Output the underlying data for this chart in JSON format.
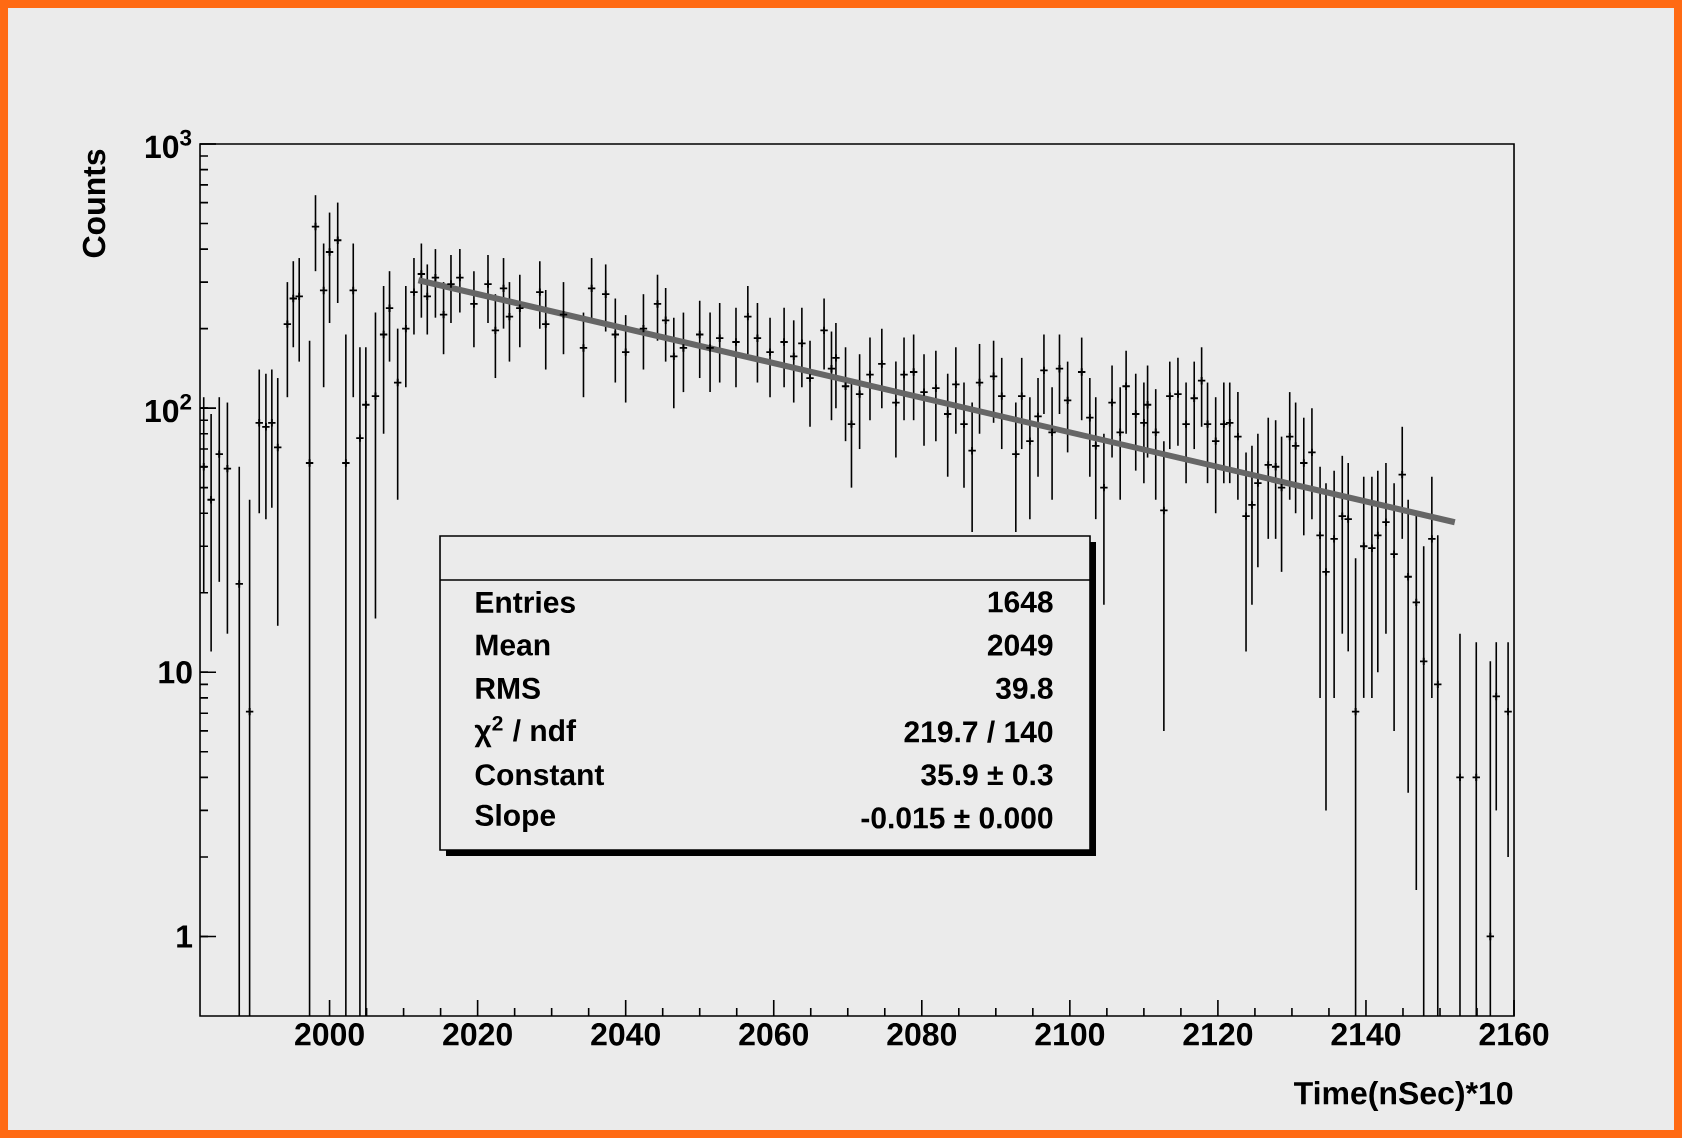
{
  "chart_data": {
    "type": "scatter",
    "xlabel": "Time(nSec)*10",
    "ylabel": "Counts",
    "log": "y",
    "xlim": [
      1982.5,
      2160
    ],
    "xticks": [
      2000,
      2020,
      2040,
      2060,
      2080,
      2100,
      2120,
      2140,
      2160
    ],
    "ylim": [
      0.5,
      1000
    ],
    "yticks": [
      1,
      10,
      {
        "value": 100,
        "label": "10$^{2}$"
      },
      {
        "value": 1000,
        "label": "10$^{3}$"
      }
    ],
    "annotations": [
      "Entries",
      "1648",
      "Mean",
      "2049",
      "RMS",
      "39.8",
      "χ$^{2}$ / ndf",
      "219.7 / 140",
      "Constant",
      "35.9 ± 0.3",
      "Slope",
      "-0.015 ± 0.000"
    ],
    "series": [
      {
        "color": "#000000",
        "marker": "cross",
        "x": [
          1983.0,
          1984.0,
          1985.1,
          1986.2,
          1987.8,
          1989.2,
          1990.5,
          1991.4,
          1992.2,
          1993.0,
          1994.3,
          1995.1,
          1995.9,
          1997.3,
          1998.1,
          1999.2,
          2000.0,
          2001.1,
          2002.2,
          2003.2,
          2004.1,
          2004.9,
          2006.2,
          2007.3,
          2008.1,
          2009.2,
          2010.3,
          2011.4,
          2012.4,
          2013.2,
          2014.3,
          2015.4,
          2016.4,
          2017.6,
          2019.5,
          2021.4,
          2022.4,
          2023.5,
          2024.3,
          2025.7,
          2028.4,
          2029.2,
          2031.6,
          2034.3,
          2035.4,
          2037.3,
          2038.6,
          2040.0,
          2042.4,
          2044.3,
          2045.4,
          2046.5,
          2047.8,
          2050.0,
          2051.4,
          2052.7,
          2054.9,
          2056.5,
          2057.8,
          2059.5,
          2061.4,
          2062.7,
          2063.8,
          2064.9,
          2066.8,
          2067.8,
          2068.4,
          2069.7,
          2070.5,
          2071.6,
          2073.0,
          2074.6,
          2076.5,
          2077.6,
          2078.9,
          2080.3,
          2081.9,
          2083.5,
          2084.6,
          2085.7,
          2086.8,
          2087.8,
          2089.7,
          2090.8,
          2092.7,
          2093.5,
          2094.6,
          2095.7,
          2096.5,
          2097.6,
          2098.6,
          2099.7,
          2101.6,
          2102.7,
          2103.5,
          2104.6,
          2105.7,
          2106.8,
          2107.6,
          2108.9,
          2110.0,
          2110.5,
          2111.6,
          2112.7,
          2113.5,
          2114.6,
          2115.7,
          2116.8,
          2117.8,
          2118.6,
          2119.7,
          2120.8,
          2121.6,
          2122.7,
          2123.8,
          2124.6,
          2125.4,
          2126.8,
          2127.8,
          2128.6,
          2129.7,
          2130.5,
          2131.6,
          2132.7,
          2133.8,
          2134.6,
          2135.7,
          2136.8,
          2137.6,
          2138.6,
          2139.7,
          2140.8,
          2141.6,
          2142.7,
          2143.8,
          2144.9,
          2145.7,
          2146.8,
          2147.8,
          2148.9,
          2149.7,
          2152.7,
          2154.9,
          2156.8,
          2157.6,
          2159.2
        ],
        "values": [
          60,
          45,
          67,
          59,
          21.6,
          7.1,
          88,
          85,
          88,
          71,
          208,
          260,
          265,
          62,
          487,
          279,
          390,
          432,
          62,
          279,
          77,
          103,
          111,
          190,
          239,
          125,
          200,
          275,
          322,
          265,
          312,
          226,
          295,
          312,
          248,
          295,
          197,
          284,
          222,
          239,
          275,
          208,
          226,
          169,
          284,
          270,
          190,
          163,
          200,
          248,
          215,
          157,
          169,
          190,
          169,
          184,
          178,
          222,
          184,
          163,
          178,
          157,
          176,
          130,
          197,
          141,
          155,
          121,
          87,
          113,
          134,
          147,
          105,
          134,
          137,
          115,
          119,
          95,
          123,
          87,
          69,
          125,
          132,
          111,
          67,
          111,
          75,
          93,
          139,
          81,
          141,
          107,
          137,
          92,
          72,
          50,
          105,
          81,
          121,
          95,
          88,
          103,
          81,
          41,
          111,
          113,
          87,
          109,
          127,
          87,
          75,
          87,
          88,
          78,
          39,
          43,
          52,
          61,
          60,
          50,
          78,
          72,
          62,
          68,
          33,
          24,
          32,
          39,
          38,
          7.1,
          30,
          29.5,
          33,
          37,
          28,
          56,
          23,
          18.4,
          11,
          32,
          9,
          4.0,
          4.0,
          1.0,
          8.1,
          7.1
        ],
        "errors": [
          [
            20,
            110
          ],
          [
            12,
            95
          ],
          [
            22,
            110
          ],
          [
            14,
            105
          ],
          [
            0.5,
            60
          ],
          [
            0.5,
            45
          ],
          [
            40,
            140
          ],
          [
            38,
            135
          ],
          [
            42,
            140
          ],
          [
            15,
            130
          ],
          [
            110,
            300
          ],
          [
            170,
            360
          ],
          [
            150,
            370
          ],
          [
            0.5,
            180
          ],
          [
            330,
            640
          ],
          [
            120,
            420
          ],
          [
            210,
            550
          ],
          [
            250,
            600
          ],
          [
            0.5,
            190
          ],
          [
            110,
            420
          ],
          [
            0.5,
            170
          ],
          [
            0.5,
            170
          ],
          [
            16,
            230
          ],
          [
            80,
            290
          ],
          [
            150,
            330
          ],
          [
            45,
            200
          ],
          [
            120,
            290
          ],
          [
            190,
            370
          ],
          [
            220,
            420
          ],
          [
            190,
            350
          ],
          [
            220,
            400
          ],
          [
            160,
            300
          ],
          [
            210,
            380
          ],
          [
            230,
            400
          ],
          [
            170,
            330
          ],
          [
            210,
            380
          ],
          [
            130,
            270
          ],
          [
            200,
            370
          ],
          [
            150,
            300
          ],
          [
            170,
            320
          ],
          [
            200,
            360
          ],
          [
            140,
            280
          ],
          [
            160,
            300
          ],
          [
            110,
            230
          ],
          [
            210,
            370
          ],
          [
            195,
            350
          ],
          [
            125,
            260
          ],
          [
            105,
            225
          ],
          [
            140,
            270
          ],
          [
            180,
            320
          ],
          [
            150,
            285
          ],
          [
            100,
            220
          ],
          [
            115,
            230
          ],
          [
            130,
            255
          ],
          [
            115,
            230
          ],
          [
            125,
            250
          ],
          [
            120,
            240
          ],
          [
            160,
            290
          ],
          [
            125,
            250
          ],
          [
            110,
            220
          ],
          [
            120,
            240
          ],
          [
            105,
            215
          ],
          [
            120,
            240
          ],
          [
            85,
            180
          ],
          [
            140,
            260
          ],
          [
            90,
            195
          ],
          [
            100,
            210
          ],
          [
            75,
            170
          ],
          [
            50,
            125
          ],
          [
            70,
            160
          ],
          [
            90,
            185
          ],
          [
            100,
            200
          ],
          [
            65,
            150
          ],
          [
            90,
            185
          ],
          [
            90,
            190
          ],
          [
            72,
            160
          ],
          [
            75,
            165
          ],
          [
            55,
            135
          ],
          [
            80,
            170
          ],
          [
            50,
            125
          ],
          [
            34,
            105
          ],
          [
            80,
            175
          ],
          [
            88,
            180
          ],
          [
            70,
            155
          ],
          [
            34,
            105
          ],
          [
            70,
            155
          ],
          [
            38,
            110
          ],
          [
            55,
            130
          ],
          [
            95,
            190
          ],
          [
            45,
            120
          ],
          [
            95,
            190
          ],
          [
            68,
            150
          ],
          [
            90,
            185
          ],
          [
            55,
            130
          ],
          [
            38,
            110
          ],
          [
            18,
            80
          ],
          [
            65,
            145
          ],
          [
            45,
            120
          ],
          [
            80,
            165
          ],
          [
            58,
            135
          ],
          [
            52,
            125
          ],
          [
            65,
            145
          ],
          [
            45,
            118
          ],
          [
            6,
            75
          ],
          [
            70,
            150
          ],
          [
            72,
            155
          ],
          [
            52,
            125
          ],
          [
            70,
            150
          ],
          [
            85,
            170
          ],
          [
            52,
            125
          ],
          [
            40,
            110
          ],
          [
            52,
            125
          ],
          [
            52,
            125
          ],
          [
            45,
            115
          ],
          [
            12,
            68
          ],
          [
            18,
            72
          ],
          [
            25,
            80
          ],
          [
            32,
            92
          ],
          [
            32,
            90
          ],
          [
            24,
            78
          ],
          [
            45,
            115
          ],
          [
            40,
            105
          ],
          [
            33,
            92
          ],
          [
            38,
            100
          ],
          [
            8,
            60
          ],
          [
            3,
            52
          ],
          [
            8,
            58
          ],
          [
            14,
            66
          ],
          [
            12,
            62
          ],
          [
            0.5,
            27
          ],
          [
            8,
            55
          ],
          [
            8,
            55
          ],
          [
            10,
            58
          ],
          [
            14,
            62
          ],
          [
            6,
            52
          ],
          [
            32,
            85
          ],
          [
            3.5,
            45
          ],
          [
            1.5,
            40
          ],
          [
            0.5,
            30
          ],
          [
            8,
            55
          ],
          [
            0.5,
            33
          ],
          [
            0.5,
            14
          ],
          [
            0.5,
            13
          ],
          [
            0.5,
            11
          ],
          [
            3,
            13
          ],
          [
            2,
            13
          ]
        ]
      },
      {
        "type": "line",
        "color": "#666666",
        "x": [
          2012,
          2152
        ],
        "values": [
          305,
          37
        ]
      }
    ]
  }
}
